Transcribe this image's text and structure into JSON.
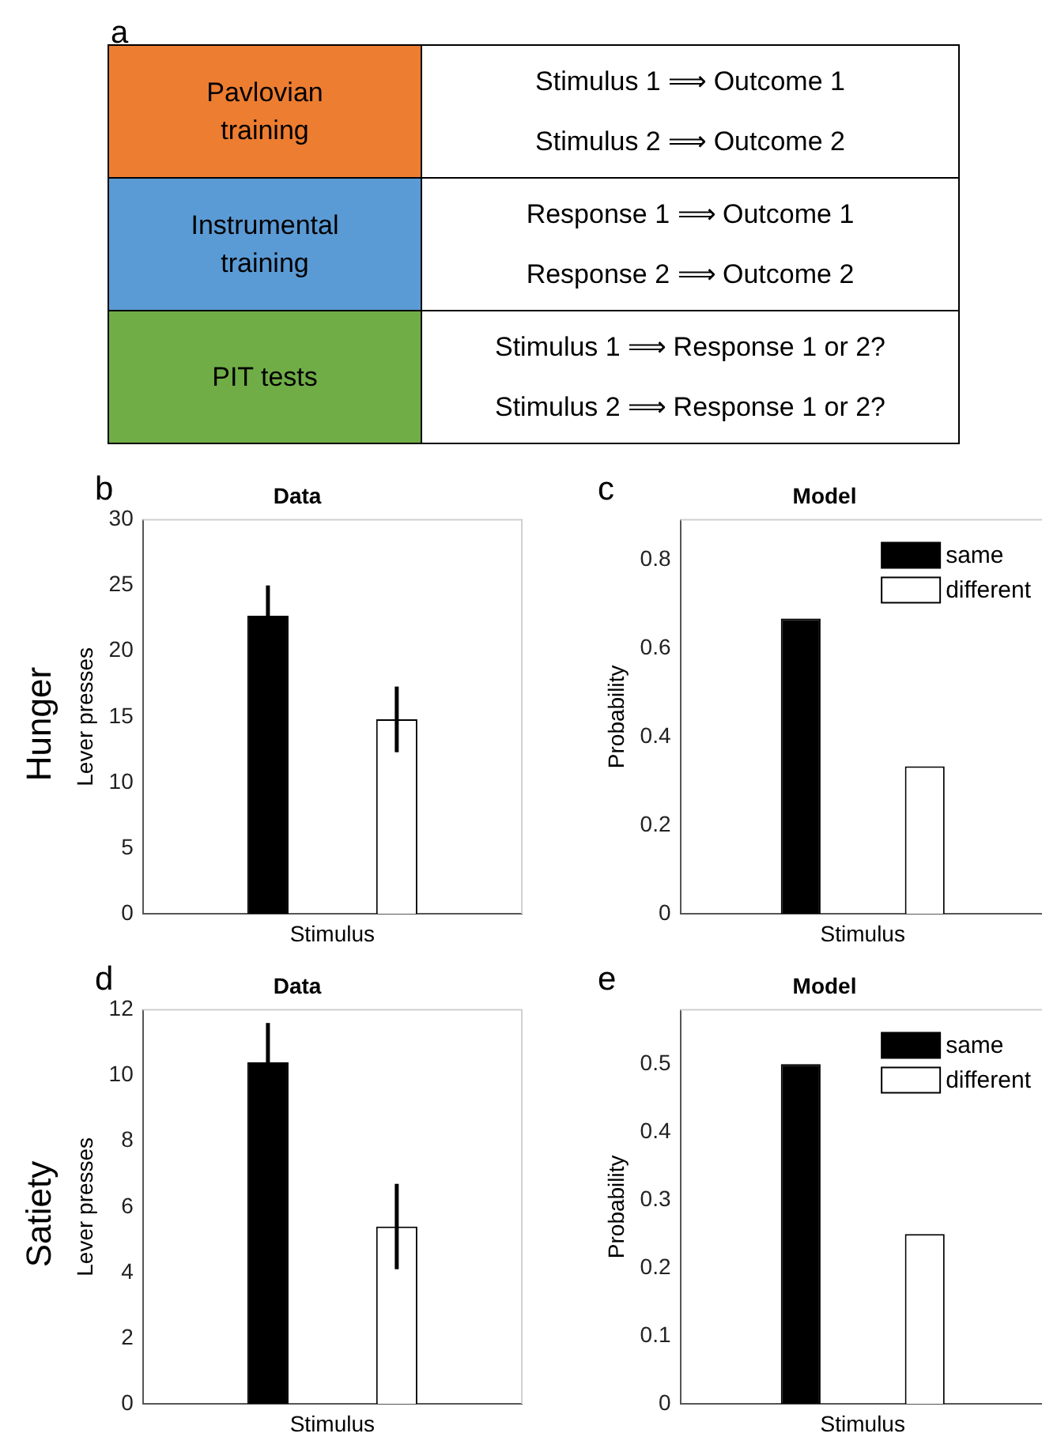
{
  "chart_data": [
    {
      "type": "other",
      "annotations": [
        "a",
        "Pavlovian training",
        "Stimulus 1 ⟹ Outcome 1",
        "Stimulus 2 ⟹ Outcome 2",
        "Instrumental training",
        "Response 1 ⟹ Outcome 1",
        "Response 2 ⟹ Outcome 2",
        "PIT tests",
        "Stimulus 1 ⟹ Response 1 or 2?",
        "Stimulus 2 ⟹ Response 1 or 2?"
      ]
    },
    {
      "type": "bar",
      "title": "Data",
      "xlabel": "Stimulus",
      "ylabel": "Lever presses",
      "annotations": [
        "b",
        "Hunger"
      ],
      "categories": [
        null
      ],
      "ylim": [
        0,
        30
      ],
      "yticks": [
        0,
        5,
        10,
        15,
        20,
        25,
        30
      ],
      "series": [
        {
          "color": "#000000",
          "values": [
            22.7
          ],
          "errors": [
            2.3
          ]
        },
        {
          "color": "#ffffff",
          "values": [
            14.8
          ],
          "errors": [
            2.5
          ]
        }
      ]
    },
    {
      "type": "bar",
      "title": "Model",
      "xlabel": "Stimulus",
      "ylabel": "Probability",
      "annotations": [
        "c"
      ],
      "categories": [
        null
      ],
      "ylim": [
        0,
        0.89
      ],
      "yticks": [
        0,
        0.2,
        0.4,
        0.6,
        0.8
      ],
      "legend": "top right",
      "series": [
        {
          "name": "same",
          "color": "#000000",
          "values": [
            0.667
          ]
        },
        {
          "name": "different",
          "color": "#ffffff",
          "values": [
            0.333
          ]
        }
      ]
    },
    {
      "type": "bar",
      "title": "Data",
      "xlabel": "Stimulus",
      "ylabel": "Lever presses",
      "annotations": [
        "d",
        "Satiety"
      ],
      "categories": [
        null
      ],
      "ylim": [
        0,
        12
      ],
      "yticks": [
        0,
        2,
        4,
        6,
        8,
        10,
        12
      ],
      "series": [
        {
          "color": "#000000",
          "values": [
            10.4
          ],
          "errors": [
            1.2
          ]
        },
        {
          "color": "#ffffff",
          "values": [
            5.4
          ],
          "errors": [
            1.3
          ]
        }
      ]
    },
    {
      "type": "bar",
      "title": "Model",
      "xlabel": "Stimulus",
      "ylabel": "Probability",
      "annotations": [
        "e"
      ],
      "categories": [
        null
      ],
      "ylim": [
        0,
        0.58
      ],
      "yticks": [
        0,
        0.1,
        0.2,
        0.3,
        0.4,
        0.5
      ],
      "legend": "top right",
      "series": [
        {
          "name": "same",
          "color": "#000000",
          "values": [
            0.5
          ]
        },
        {
          "name": "different",
          "color": "#ffffff",
          "values": [
            0.25
          ]
        }
      ]
    }
  ]
}
